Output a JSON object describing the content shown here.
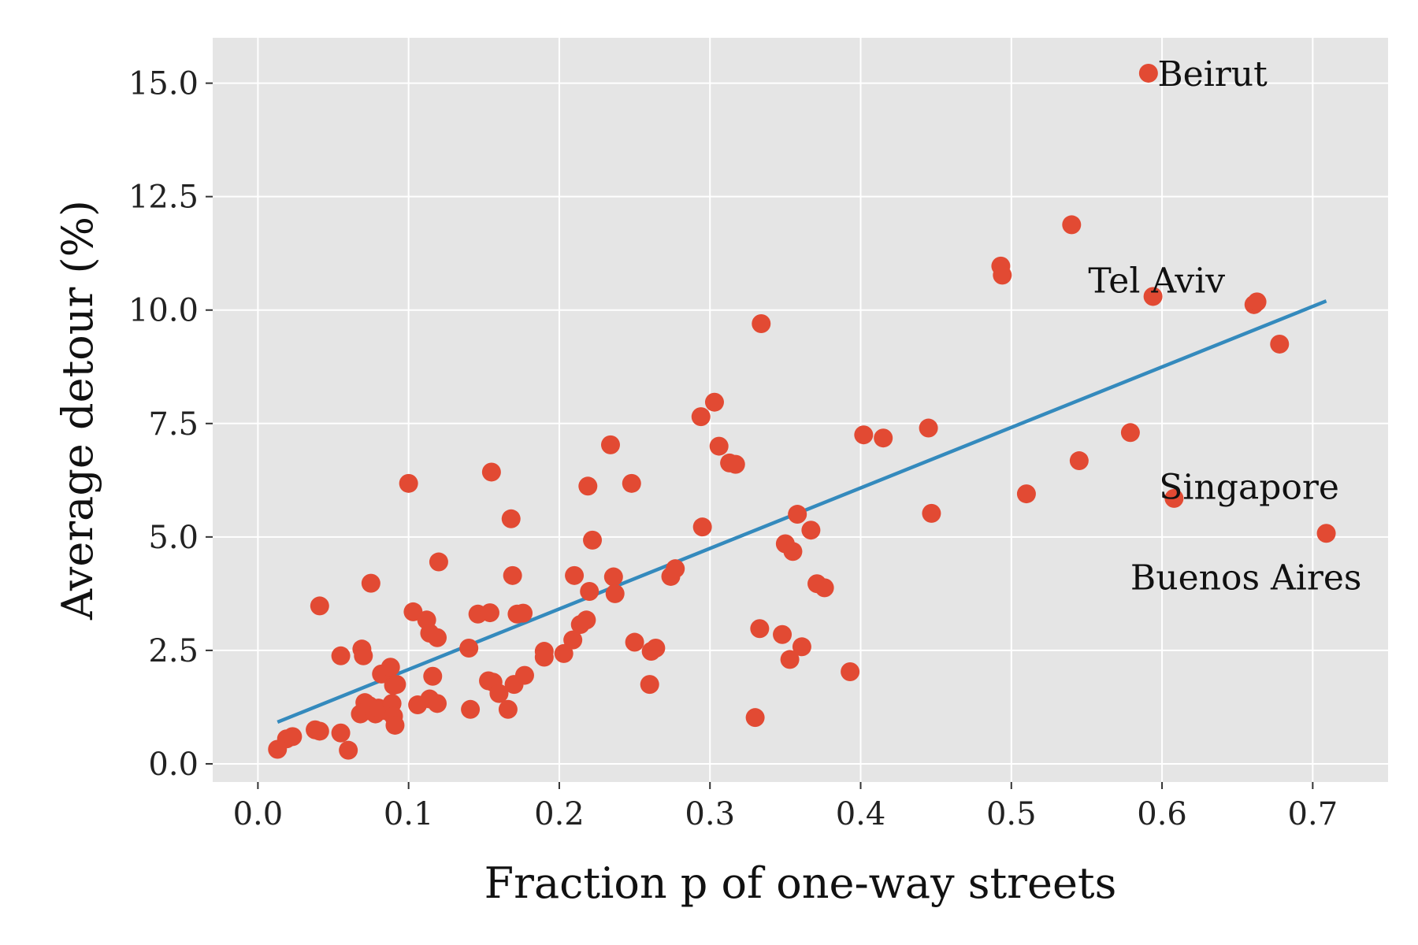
{
  "chart_data": {
    "type": "scatter",
    "title": "",
    "xlabel": "Fraction p of one-way streets",
    "ylabel": "Average detour (%)",
    "xlim": [
      -0.03,
      0.75
    ],
    "ylim": [
      -0.4,
      16.0
    ],
    "xticks": [
      0.0,
      0.1,
      0.2,
      0.3,
      0.4,
      0.5,
      0.6,
      0.7
    ],
    "xtick_labels": [
      "0.0",
      "0.1",
      "0.2",
      "0.3",
      "0.4",
      "0.5",
      "0.6",
      "0.7"
    ],
    "yticks": [
      0.0,
      2.5,
      5.0,
      7.5,
      10.0,
      12.5,
      15.0
    ],
    "ytick_labels": [
      "0.0",
      "2.5",
      "5.0",
      "7.5",
      "10.0",
      "12.5",
      "15.0"
    ],
    "grid": true,
    "colors": {
      "background": "#e5e5e5",
      "grid": "#ffffff",
      "points": "#e24a33",
      "fit_line": "#348abd"
    },
    "series": [
      {
        "name": "cities",
        "points": [
          [
            0.013,
            0.32
          ],
          [
            0.019,
            0.55
          ],
          [
            0.023,
            0.6
          ],
          [
            0.038,
            0.75
          ],
          [
            0.041,
            0.72
          ],
          [
            0.041,
            3.48
          ],
          [
            0.055,
            2.38
          ],
          [
            0.055,
            0.68
          ],
          [
            0.06,
            0.3
          ],
          [
            0.068,
            1.1
          ],
          [
            0.069,
            2.53
          ],
          [
            0.07,
            2.38
          ],
          [
            0.071,
            1.35
          ],
          [
            0.072,
            1.17
          ],
          [
            0.074,
            1.28
          ],
          [
            0.075,
            3.98
          ],
          [
            0.078,
            1.1
          ],
          [
            0.08,
            1.23
          ],
          [
            0.082,
            1.98
          ],
          [
            0.085,
            1.17
          ],
          [
            0.088,
            2.13
          ],
          [
            0.089,
            1.33
          ],
          [
            0.09,
            1.05
          ],
          [
            0.09,
            1.73
          ],
          [
            0.091,
            0.85
          ],
          [
            0.092,
            1.75
          ],
          [
            0.1,
            6.18
          ],
          [
            0.103,
            3.35
          ],
          [
            0.106,
            1.3
          ],
          [
            0.112,
            3.17
          ],
          [
            0.114,
            1.43
          ],
          [
            0.114,
            2.88
          ],
          [
            0.116,
            1.93
          ],
          [
            0.119,
            2.78
          ],
          [
            0.119,
            1.33
          ],
          [
            0.12,
            4.45
          ],
          [
            0.14,
            2.55
          ],
          [
            0.141,
            1.2
          ],
          [
            0.146,
            3.3
          ],
          [
            0.153,
            1.83
          ],
          [
            0.154,
            3.33
          ],
          [
            0.155,
            6.43
          ],
          [
            0.156,
            1.8
          ],
          [
            0.16,
            1.55
          ],
          [
            0.166,
            1.2
          ],
          [
            0.168,
            5.4
          ],
          [
            0.169,
            4.15
          ],
          [
            0.17,
            1.75
          ],
          [
            0.172,
            3.3
          ],
          [
            0.176,
            3.32
          ],
          [
            0.177,
            1.95
          ],
          [
            0.19,
            2.48
          ],
          [
            0.19,
            2.35
          ],
          [
            0.203,
            2.43
          ],
          [
            0.209,
            2.73
          ],
          [
            0.21,
            4.15
          ],
          [
            0.214,
            3.07
          ],
          [
            0.218,
            3.17
          ],
          [
            0.219,
            6.12
          ],
          [
            0.22,
            3.8
          ],
          [
            0.222,
            4.93
          ],
          [
            0.234,
            7.03
          ],
          [
            0.236,
            4.12
          ],
          [
            0.237,
            3.75
          ],
          [
            0.248,
            6.18
          ],
          [
            0.25,
            2.68
          ],
          [
            0.26,
            1.75
          ],
          [
            0.261,
            2.48
          ],
          [
            0.264,
            2.55
          ],
          [
            0.274,
            4.13
          ],
          [
            0.277,
            4.3
          ],
          [
            0.294,
            7.65
          ],
          [
            0.295,
            5.22
          ],
          [
            0.303,
            7.97
          ],
          [
            0.306,
            7.0
          ],
          [
            0.313,
            6.63
          ],
          [
            0.317,
            6.6
          ],
          [
            0.33,
            1.02
          ],
          [
            0.333,
            2.98
          ],
          [
            0.334,
            9.7
          ],
          [
            0.348,
            2.85
          ],
          [
            0.35,
            4.85
          ],
          [
            0.353,
            2.3
          ],
          [
            0.355,
            4.68
          ],
          [
            0.358,
            5.5
          ],
          [
            0.361,
            2.58
          ],
          [
            0.367,
            5.15
          ],
          [
            0.371,
            3.97
          ],
          [
            0.376,
            3.88
          ],
          [
            0.393,
            2.03
          ],
          [
            0.402,
            7.25
          ],
          [
            0.415,
            7.18
          ],
          [
            0.445,
            7.4
          ],
          [
            0.447,
            5.52
          ],
          [
            0.493,
            10.97
          ],
          [
            0.494,
            10.77
          ],
          [
            0.51,
            5.95
          ],
          [
            0.54,
            11.88
          ],
          [
            0.545,
            6.68
          ],
          [
            0.579,
            7.3
          ],
          [
            0.591,
            15.22
          ],
          [
            0.594,
            10.3
          ],
          [
            0.608,
            5.85
          ],
          [
            0.661,
            10.12
          ],
          [
            0.663,
            10.18
          ],
          [
            0.678,
            9.25
          ],
          [
            0.709,
            5.08
          ]
        ]
      }
    ],
    "fit_line": {
      "x": [
        0.013,
        0.709
      ],
      "y": [
        0.92,
        10.2
      ]
    },
    "annotations": [
      {
        "text": "Beirut",
        "x": 0.597,
        "y": 15.2,
        "align": "start"
      },
      {
        "text": "Tel Aviv",
        "x": 0.551,
        "y": 10.65,
        "align": "start"
      },
      {
        "text": "Singapore",
        "x": 0.598,
        "y": 6.1,
        "align": "start"
      },
      {
        "text": "Buenos Aires",
        "x": 0.579,
        "y": 4.1,
        "align": "start"
      }
    ]
  }
}
